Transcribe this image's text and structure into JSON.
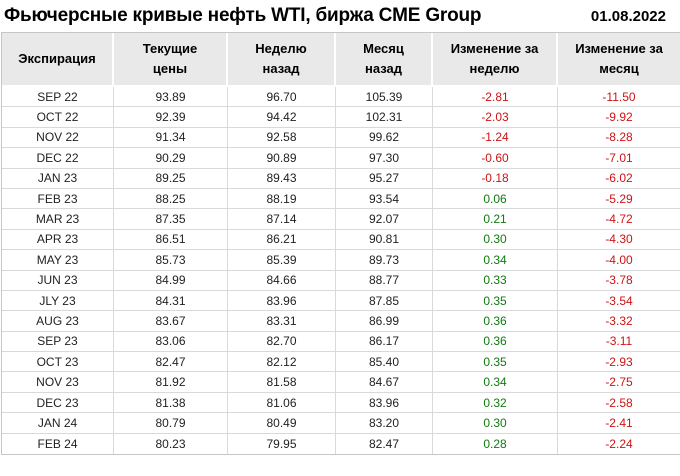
{
  "title": "Фьючерсные кривые нефть WTI, биржа CME Group",
  "date": "01.08.2022",
  "colors": {
    "positive": "#107a10",
    "negative": "#cc1414",
    "header_bg": "#e9e9e9",
    "grid_border": "#d9d9d9",
    "outer_border": "#c6c6c6"
  },
  "table_display": {
    "header_lines": [
      "Экспирация",
      "Текущие\nцены",
      "Неделю\nназад",
      "Месяц\nназад",
      "Изменение за\nнеделю",
      "Изменение за\nмесяц"
    ]
  },
  "chart_data": {
    "type": "table",
    "title": "Фьючерсные кривые нефть WTI, биржа CME Group",
    "date": "01.08.2022",
    "columns": [
      "Экспирация",
      "Текущие цены",
      "Неделю назад",
      "Месяц назад",
      "Изменение за неделю",
      "Изменение за месяц"
    ],
    "rows": [
      [
        "SEP 22",
        93.89,
        96.7,
        105.39,
        -2.81,
        -11.5
      ],
      [
        "OCT 22",
        92.39,
        94.42,
        102.31,
        -2.03,
        -9.92
      ],
      [
        "NOV 22",
        91.34,
        92.58,
        99.62,
        -1.24,
        -8.28
      ],
      [
        "DEC 22",
        90.29,
        90.89,
        97.3,
        -0.6,
        -7.01
      ],
      [
        "JAN 23",
        89.25,
        89.43,
        95.27,
        -0.18,
        -6.02
      ],
      [
        "FEB 23",
        88.25,
        88.19,
        93.54,
        0.06,
        -5.29
      ],
      [
        "MAR 23",
        87.35,
        87.14,
        92.07,
        0.21,
        -4.72
      ],
      [
        "APR 23",
        86.51,
        86.21,
        90.81,
        0.3,
        -4.3
      ],
      [
        "MAY 23",
        85.73,
        85.39,
        89.73,
        0.34,
        -4.0
      ],
      [
        "JUN 23",
        84.99,
        84.66,
        88.77,
        0.33,
        -3.78
      ],
      [
        "JLY 23",
        84.31,
        83.96,
        87.85,
        0.35,
        -3.54
      ],
      [
        "AUG 23",
        83.67,
        83.31,
        86.99,
        0.36,
        -3.32
      ],
      [
        "SEP 23",
        83.06,
        82.7,
        86.17,
        0.36,
        -3.11
      ],
      [
        "OCT 23",
        82.47,
        82.12,
        85.4,
        0.35,
        -2.93
      ],
      [
        "NOV 23",
        81.92,
        81.58,
        84.67,
        0.34,
        -2.75
      ],
      [
        "DEC 23",
        81.38,
        81.06,
        83.96,
        0.32,
        -2.58
      ],
      [
        "JAN 24",
        80.79,
        80.49,
        83.2,
        0.3,
        -2.41
      ],
      [
        "FEB 24",
        80.23,
        79.95,
        82.47,
        0.28,
        -2.24
      ]
    ]
  }
}
